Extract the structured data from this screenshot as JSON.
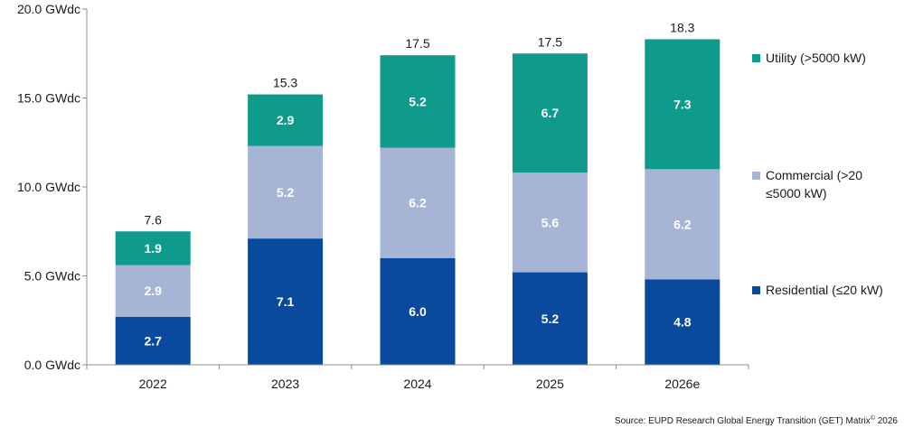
{
  "chart_data": {
    "type": "bar",
    "stacked": true,
    "categories": [
      "2022",
      "2023",
      "2024",
      "2025",
      "2026e"
    ],
    "series": [
      {
        "name": "Residential (≤20 kW)",
        "color": "#0a4a9e",
        "values": [
          2.7,
          7.1,
          6.0,
          5.2,
          4.8
        ]
      },
      {
        "name": "Commercial (>20 ≤5000 kW)",
        "name_lines": [
          "Commercial (>20",
          "≤5000 kW)"
        ],
        "color": "#a6b4d6",
        "values": [
          2.9,
          5.2,
          6.2,
          5.6,
          6.2
        ]
      },
      {
        "name": "Utility (>5000 kW)",
        "color": "#0e9b8c",
        "values": [
          1.9,
          2.9,
          5.2,
          6.7,
          7.3
        ]
      }
    ],
    "totals": [
      "7.6",
      "15.3",
      "17.5",
      "17.5",
      "18.3"
    ],
    "y_ticks": [
      {
        "value": 0,
        "label": "0.0 GWdc"
      },
      {
        "value": 5,
        "label": "5.0 GWdc"
      },
      {
        "value": 10,
        "label": "10.0 GWdc"
      },
      {
        "value": 15,
        "label": "15.0 GWdc"
      },
      {
        "value": 20,
        "label": "20.0 GWdc"
      }
    ],
    "ylim": [
      0,
      20
    ],
    "grid": false,
    "legend_position": "right",
    "title": "",
    "xlabel": "",
    "ylabel": ""
  },
  "source": {
    "text": "Source: EUPD Research Global Energy Transition (GET) Matrix",
    "superscript": "©",
    "year": " 2026"
  }
}
